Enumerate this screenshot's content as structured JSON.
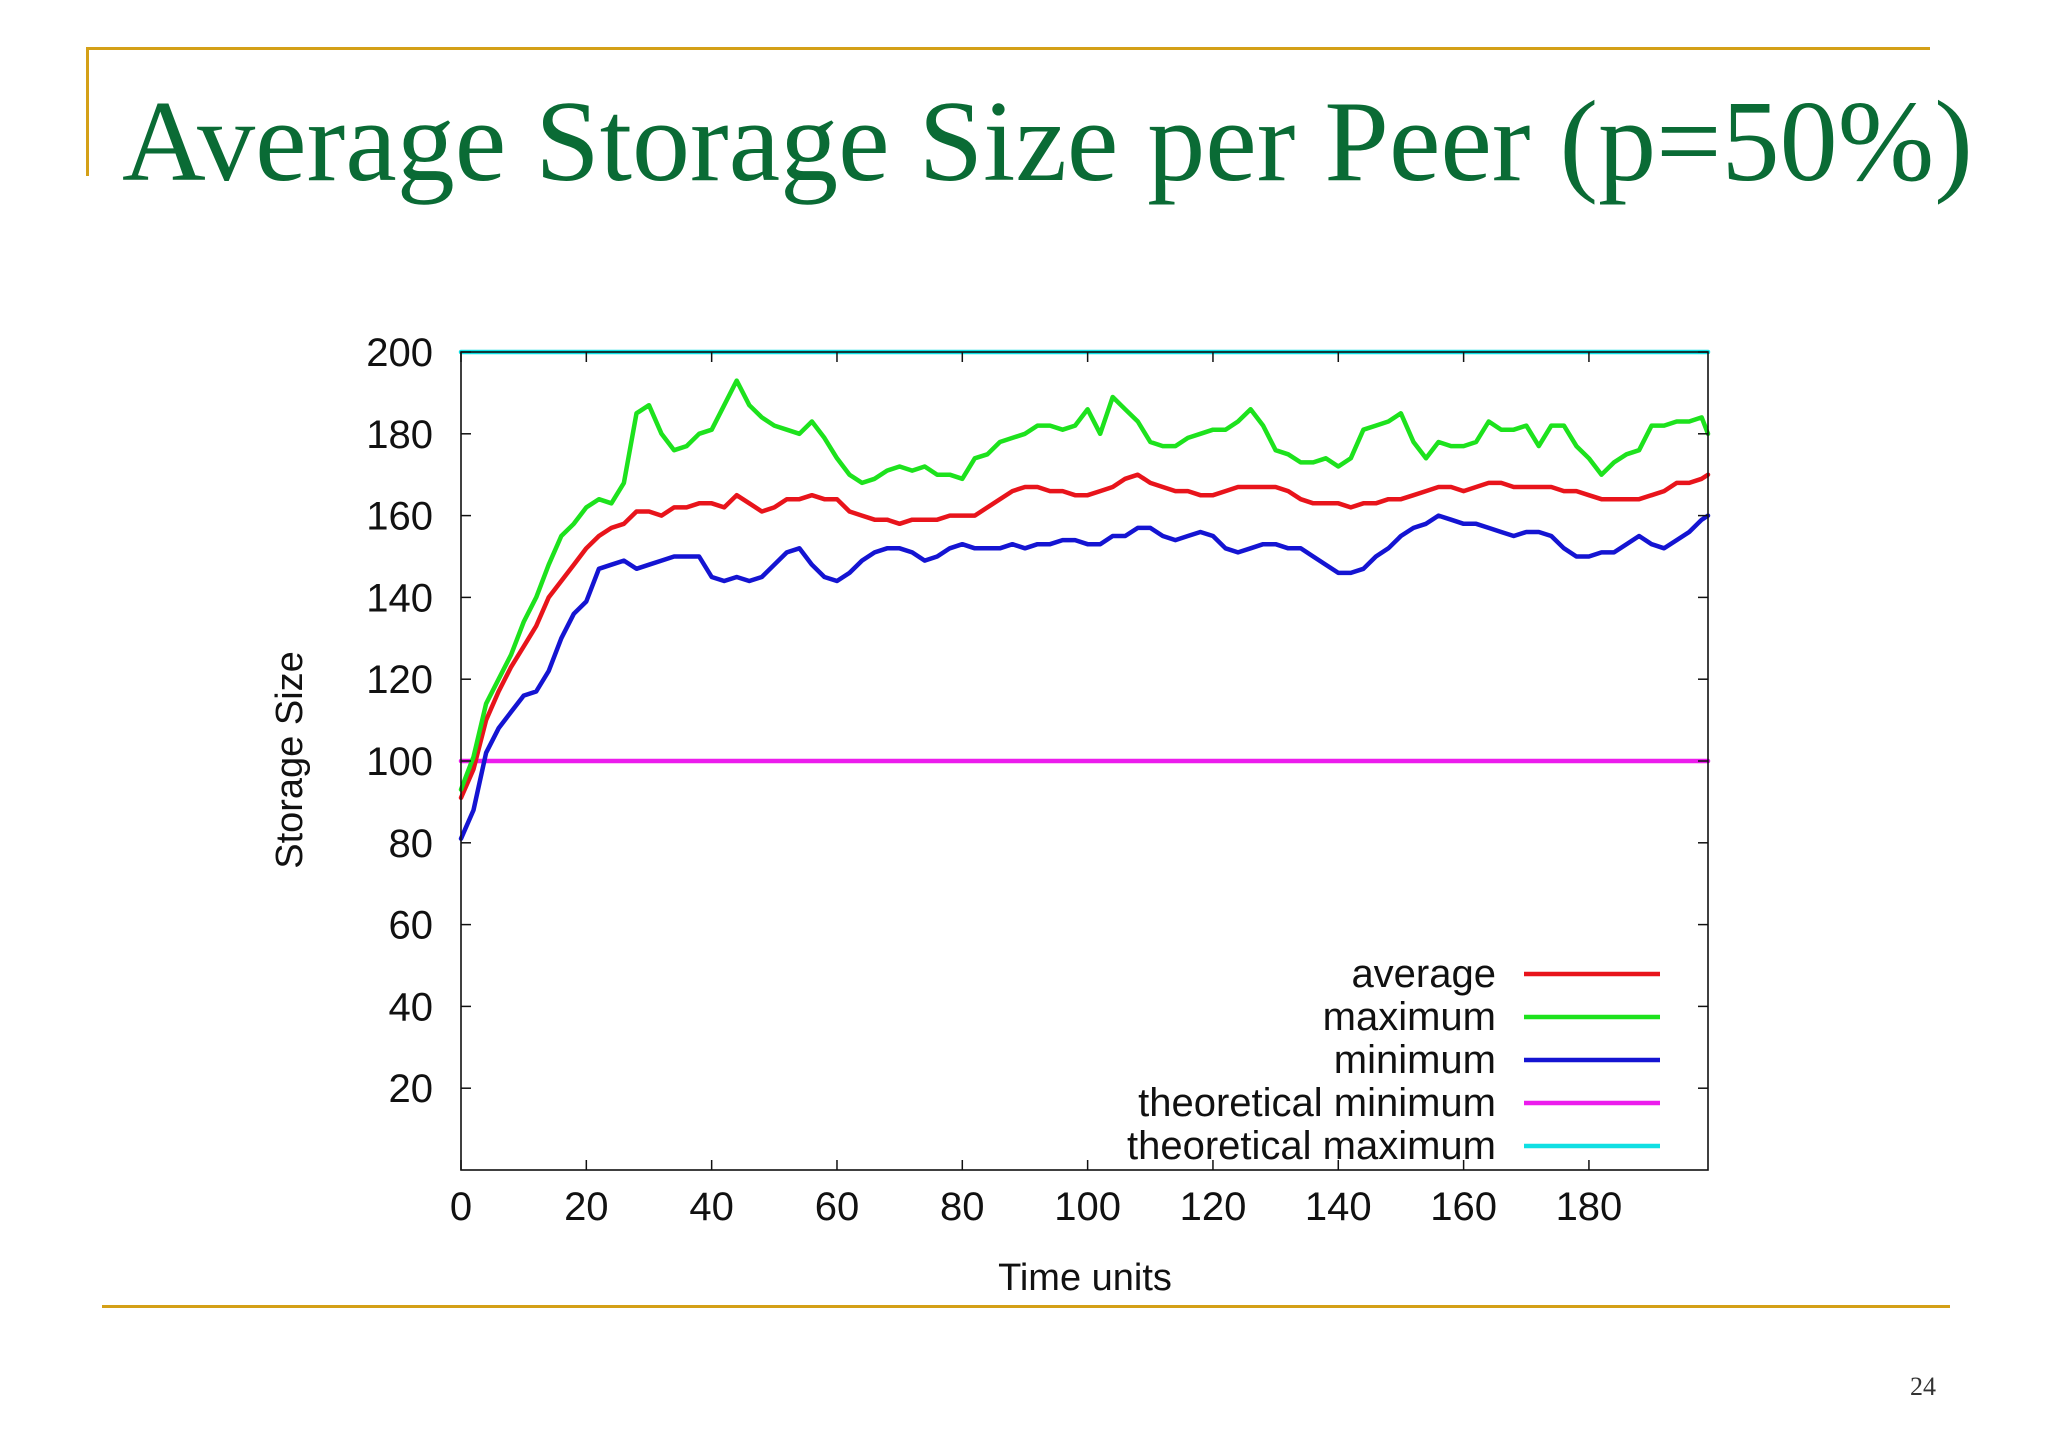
{
  "slide": {
    "title": "Average Storage Size per Peer (p=50%)",
    "page_number": "24",
    "accent_color": "#d4a017",
    "title_color": "#0a6b35"
  },
  "chart_data": {
    "type": "line",
    "title": "",
    "xlabel": "Time units",
    "ylabel": "Storage Size",
    "xlim": [
      0,
      199
    ],
    "ylim": [
      0,
      200
    ],
    "xticks": [
      0,
      20,
      40,
      60,
      80,
      100,
      120,
      140,
      160,
      180
    ],
    "yticks": [
      20,
      40,
      60,
      80,
      100,
      120,
      140,
      160,
      180,
      200
    ],
    "grid": false,
    "legend_position": "bottom-right",
    "series": [
      {
        "name": "average",
        "color": "#e8141b",
        "x": [
          0,
          2,
          4,
          6,
          8,
          10,
          12,
          14,
          16,
          18,
          20,
          22,
          24,
          26,
          28,
          30,
          32,
          34,
          36,
          38,
          40,
          42,
          44,
          46,
          48,
          50,
          52,
          54,
          56,
          58,
          60,
          62,
          64,
          66,
          68,
          70,
          72,
          74,
          76,
          78,
          80,
          82,
          84,
          86,
          88,
          90,
          92,
          94,
          96,
          98,
          100,
          102,
          104,
          106,
          108,
          110,
          112,
          114,
          116,
          118,
          120,
          122,
          124,
          126,
          128,
          130,
          132,
          134,
          136,
          138,
          140,
          142,
          144,
          146,
          148,
          150,
          152,
          154,
          156,
          158,
          160,
          162,
          164,
          166,
          168,
          170,
          172,
          174,
          176,
          178,
          180,
          182,
          184,
          186,
          188,
          190,
          192,
          194,
          196,
          198,
          199
        ],
        "y": [
          91,
          98,
          110,
          117,
          123,
          128,
          133,
          140,
          144,
          148,
          152,
          155,
          157,
          158,
          161,
          161,
          160,
          162,
          162,
          163,
          163,
          162,
          165,
          163,
          161,
          162,
          164,
          164,
          165,
          164,
          164,
          161,
          160,
          159,
          159,
          158,
          159,
          159,
          159,
          160,
          160,
          160,
          162,
          164,
          166,
          167,
          167,
          166,
          166,
          165,
          165,
          166,
          167,
          169,
          170,
          168,
          167,
          166,
          166,
          165,
          165,
          166,
          167,
          167,
          167,
          167,
          166,
          164,
          163,
          163,
          163,
          162,
          163,
          163,
          164,
          164,
          165,
          166,
          167,
          167,
          166,
          167,
          168,
          168,
          167,
          167,
          167,
          167,
          166,
          166,
          165,
          164,
          164,
          164,
          164,
          165,
          166,
          168,
          168,
          169,
          170
        ]
      },
      {
        "name": "maximum",
        "color": "#1de21d",
        "x": [
          0,
          2,
          4,
          6,
          8,
          10,
          12,
          14,
          16,
          18,
          20,
          22,
          24,
          26,
          28,
          30,
          32,
          34,
          36,
          38,
          40,
          42,
          44,
          46,
          48,
          50,
          52,
          54,
          56,
          58,
          60,
          62,
          64,
          66,
          68,
          70,
          72,
          74,
          76,
          78,
          80,
          82,
          84,
          86,
          88,
          90,
          92,
          94,
          96,
          98,
          100,
          102,
          104,
          106,
          108,
          110,
          112,
          114,
          116,
          118,
          120,
          122,
          124,
          126,
          128,
          130,
          132,
          134,
          136,
          138,
          140,
          142,
          144,
          146,
          148,
          150,
          152,
          154,
          156,
          158,
          160,
          162,
          164,
          166,
          168,
          170,
          172,
          174,
          176,
          178,
          180,
          182,
          184,
          186,
          188,
          190,
          192,
          194,
          196,
          198,
          199
        ],
        "y": [
          93,
          101,
          114,
          120,
          126,
          134,
          140,
          148,
          155,
          158,
          162,
          164,
          163,
          168,
          185,
          187,
          180,
          176,
          177,
          180,
          181,
          187,
          193,
          187,
          184,
          182,
          181,
          180,
          183,
          179,
          174,
          170,
          168,
          169,
          171,
          172,
          171,
          172,
          170,
          170,
          169,
          174,
          175,
          178,
          179,
          180,
          182,
          182,
          181,
          182,
          186,
          180,
          189,
          186,
          183,
          178,
          177,
          177,
          179,
          180,
          181,
          181,
          183,
          186,
          182,
          176,
          175,
          173,
          173,
          174,
          172,
          174,
          181,
          182,
          183,
          185,
          178,
          174,
          178,
          177,
          177,
          178,
          183,
          181,
          181,
          182,
          177,
          182,
          182,
          177,
          174,
          170,
          173,
          175,
          176,
          182,
          182,
          183,
          183,
          184,
          180
        ]
      },
      {
        "name": "minimum",
        "color": "#1414d2",
        "x": [
          0,
          2,
          4,
          6,
          8,
          10,
          12,
          14,
          16,
          18,
          20,
          22,
          24,
          26,
          28,
          30,
          32,
          34,
          36,
          38,
          40,
          42,
          44,
          46,
          48,
          50,
          52,
          54,
          56,
          58,
          60,
          62,
          64,
          66,
          68,
          70,
          72,
          74,
          76,
          78,
          80,
          82,
          84,
          86,
          88,
          90,
          92,
          94,
          96,
          98,
          100,
          102,
          104,
          106,
          108,
          110,
          112,
          114,
          116,
          118,
          120,
          122,
          124,
          126,
          128,
          130,
          132,
          134,
          136,
          138,
          140,
          142,
          144,
          146,
          148,
          150,
          152,
          154,
          156,
          158,
          160,
          162,
          164,
          166,
          168,
          170,
          172,
          174,
          176,
          178,
          180,
          182,
          184,
          186,
          188,
          190,
          192,
          194,
          196,
          198,
          199
        ],
        "y": [
          81,
          88,
          102,
          108,
          112,
          116,
          117,
          122,
          130,
          136,
          139,
          147,
          148,
          149,
          147,
          148,
          149,
          150,
          150,
          150,
          145,
          144,
          145,
          144,
          145,
          148,
          151,
          152,
          148,
          145,
          144,
          146,
          149,
          151,
          152,
          152,
          151,
          149,
          150,
          152,
          153,
          152,
          152,
          152,
          153,
          152,
          153,
          153,
          154,
          154,
          153,
          153,
          155,
          155,
          157,
          157,
          155,
          154,
          155,
          156,
          155,
          152,
          151,
          152,
          153,
          153,
          152,
          152,
          150,
          148,
          146,
          146,
          147,
          150,
          152,
          155,
          157,
          158,
          160,
          159,
          158,
          158,
          157,
          156,
          155,
          156,
          156,
          155,
          152,
          150,
          150,
          151,
          151,
          153,
          155,
          153,
          152,
          154,
          156,
          159,
          160
        ]
      },
      {
        "name": "theoretical minimum",
        "color": "#ec1ced",
        "x": [
          0,
          199
        ],
        "y": [
          100,
          100
        ]
      },
      {
        "name": "theoretical maximum",
        "color": "#10dfe3",
        "x": [
          0,
          199
        ],
        "y": [
          200,
          200
        ]
      }
    ]
  }
}
